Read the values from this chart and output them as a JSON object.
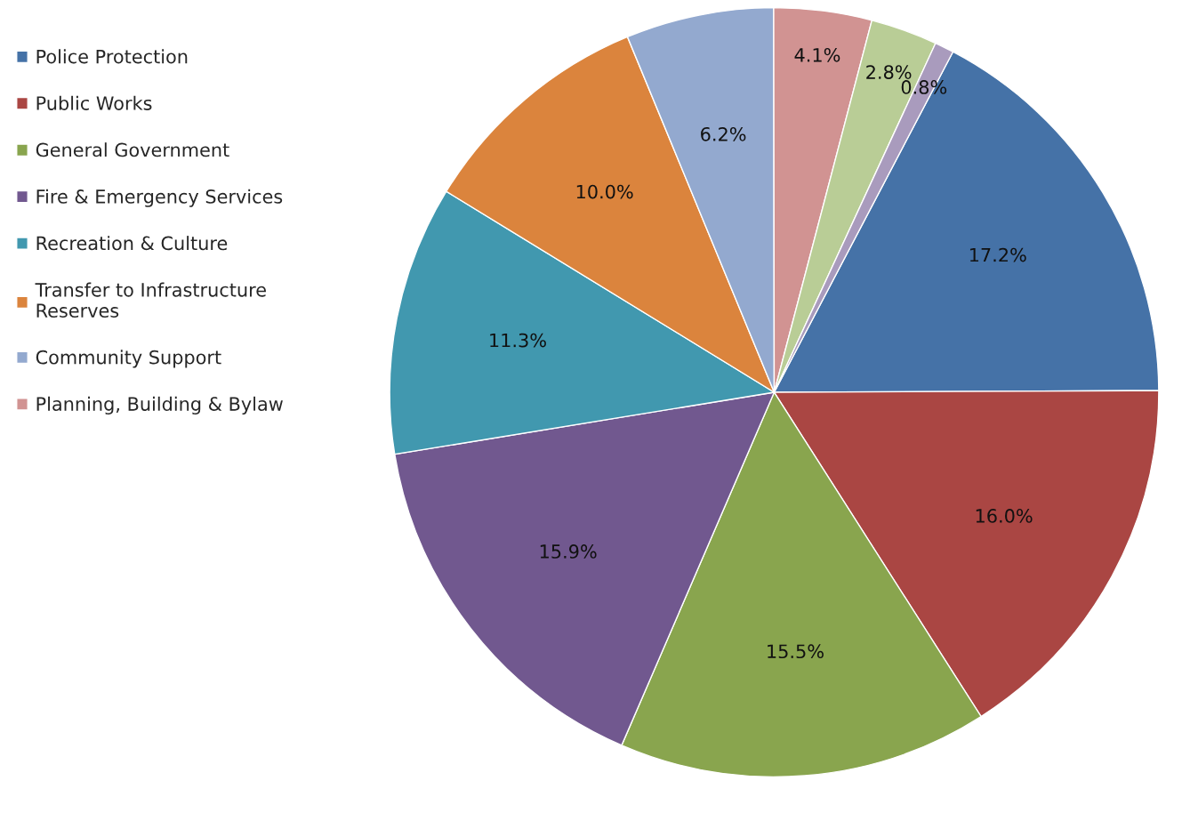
{
  "chart_data": {
    "type": "pie",
    "categories": [
      "Police Protection",
      "Public Works",
      "General Government",
      "Fire & Emergency Services",
      "Recreation & Culture",
      "Transfer to Infrastructure Reserves",
      "Community Support",
      "Planning, Building & Bylaw",
      null,
      null
    ],
    "values": [
      17.2,
      16.0,
      15.5,
      15.9,
      11.3,
      10.0,
      6.2,
      4.1,
      2.8,
      0.8
    ],
    "value_labels": [
      "17.2%",
      "16.0%",
      "15.5%",
      "15.9%",
      "11.3%",
      "10.0%",
      "6.2%",
      "4.1%",
      "2.8%",
      "0.8%"
    ],
    "colors": [
      "#4572a7",
      "#aa4643",
      "#89a54e",
      "#71588f",
      "#4198af",
      "#db843d",
      "#93a9cf",
      "#d19392",
      "#b9cd96",
      "#a99bbd"
    ],
    "legend": "left"
  }
}
